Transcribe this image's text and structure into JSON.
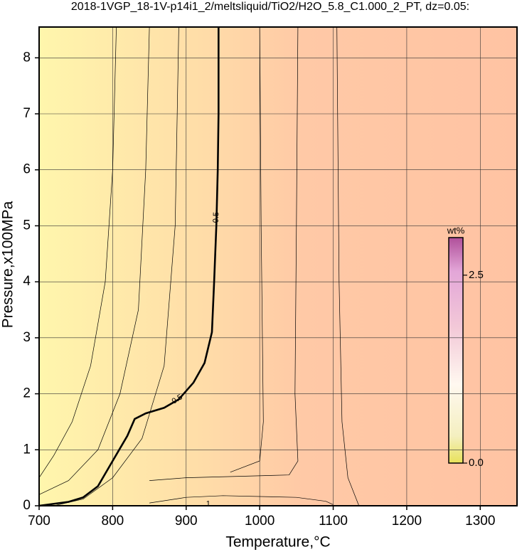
{
  "chart_data": {
    "type": "contour",
    "title": "2018-1VGP_18-1V-p14i1_2/meltsliquid/TiO2/H2O_5.8_C1.000_2_PT, dz=0.05:",
    "x_label": "Temperature,°C",
    "y_label": "Pressure,x100MPa",
    "xlim": [
      700,
      1350
    ],
    "ylim": [
      0,
      8.55
    ],
    "xticks": [
      700,
      800,
      900,
      1000,
      1100,
      1200,
      1300
    ],
    "yticks": [
      0,
      1,
      2,
      3,
      4,
      5,
      6,
      7,
      8
    ],
    "grid": true,
    "contours": [
      {
        "level": 0.5,
        "x": [
          700,
          740,
          760,
          780,
          800,
          820,
          830,
          845,
          870,
          890,
          910,
          925,
          935,
          938,
          941,
          943,
          944,
          944
        ],
        "y": [
          0,
          0.07,
          0.15,
          0.35,
          0.8,
          1.25,
          1.55,
          1.65,
          1.75,
          1.9,
          2.2,
          2.55,
          3.1,
          4,
          5,
          6,
          7,
          8.55
        ]
      },
      {
        "x": [
          700,
          720,
          745,
          770,
          790,
          800,
          805
        ],
        "y": [
          0.5,
          0.9,
          1.5,
          2.5,
          4,
          6,
          8.55
        ]
      },
      {
        "x": [
          700,
          740,
          780,
          810,
          835,
          845,
          850
        ],
        "y": [
          0.2,
          0.45,
          1,
          2,
          3.5,
          6,
          8.55
        ]
      },
      {
        "x": [
          720,
          760,
          800,
          840,
          870,
          885,
          890
        ],
        "y": [
          0,
          0.12,
          0.5,
          1.2,
          2.5,
          5,
          8.55
        ]
      },
      {
        "x": [
          850,
          900,
          950,
          1050,
          1090,
          1100
        ],
        "y": [
          0.05,
          0.15,
          0.18,
          0.15,
          0.08,
          0.02
        ]
      },
      {
        "x": [
          1000,
          1002,
          1005,
          1000,
          960
        ],
        "y": [
          8.55,
          5,
          1.5,
          0.8,
          0.6
        ]
      },
      {
        "x": [
          1052,
          1050,
          1048,
          1052,
          1040,
          900,
          850
        ],
        "y": [
          8.55,
          5,
          2,
          0.8,
          0.55,
          0.5,
          0.45
        ]
      },
      {
        "x": [
          1105,
          1108,
          1112,
          1120,
          1135
        ],
        "y": [
          8.55,
          4,
          1.5,
          0.5,
          0
        ]
      }
    ],
    "annotations": [
      {
        "text": "0.5",
        "x": 941,
        "y": 5.15
      },
      {
        "text": "0.5",
        "x": 888,
        "y": 1.9
      },
      {
        "text": "1",
        "x": 930,
        "y": 0.03
      }
    ],
    "colorbar": {
      "title": "wt%",
      "lim": [
        0,
        3
      ],
      "ticks": [
        {
          "value": 0,
          "label": "0.0"
        },
        {
          "value": 2.5,
          "label": "2.5"
        }
      ]
    }
  }
}
